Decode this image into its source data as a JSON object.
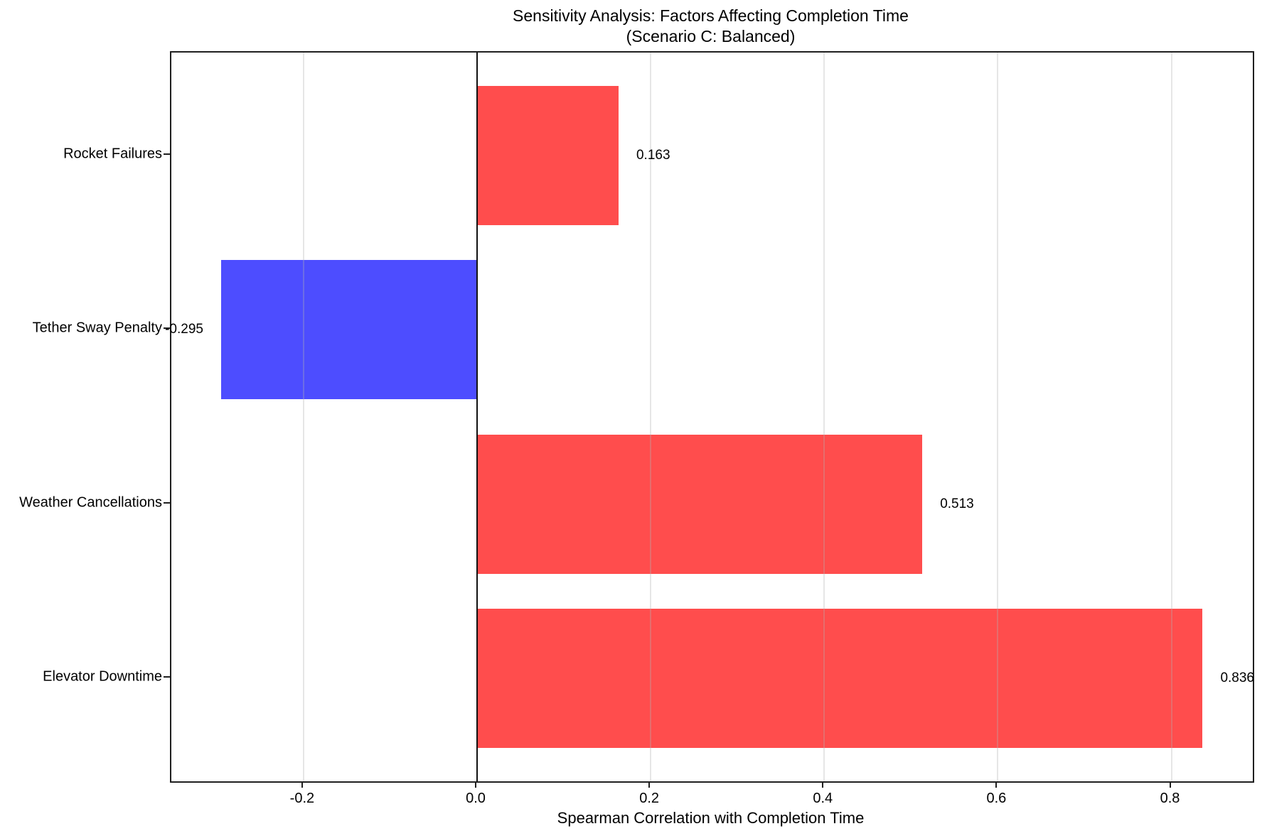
{
  "chart_data": {
    "type": "bar",
    "orientation": "horizontal",
    "title": "Sensitivity Analysis: Factors Affecting Completion Time",
    "subtitle": "(Scenario C: Balanced)",
    "xlabel": "Spearman Correlation with Completion Time",
    "ylabel": "",
    "categories": [
      "Rocket Failures",
      "Tether Sway Penalty",
      "Weather Cancellations",
      "Elevator Downtime"
    ],
    "values": [
      0.163,
      -0.295,
      0.513,
      0.836
    ],
    "value_labels": [
      "0.163",
      "-0.295",
      "0.513",
      "0.836"
    ],
    "positive_color": "#FF4D4D",
    "negative_color": "#4D4DFF",
    "bar_colors": [
      "#FF4D4D",
      "#4D4DFF",
      "#FF4D4D",
      "#FF4D4D"
    ],
    "xlim": [
      -0.3523,
      0.8938
    ],
    "xticks": [
      -0.2,
      0.0,
      0.2,
      0.4,
      0.6,
      0.8
    ],
    "xtick_labels": [
      "-0.2",
      "0.0",
      "0.2",
      "0.4",
      "0.6",
      "0.8"
    ],
    "grid": true,
    "grid_color": "#B0B0B0",
    "zero_line": true,
    "legend": false
  }
}
